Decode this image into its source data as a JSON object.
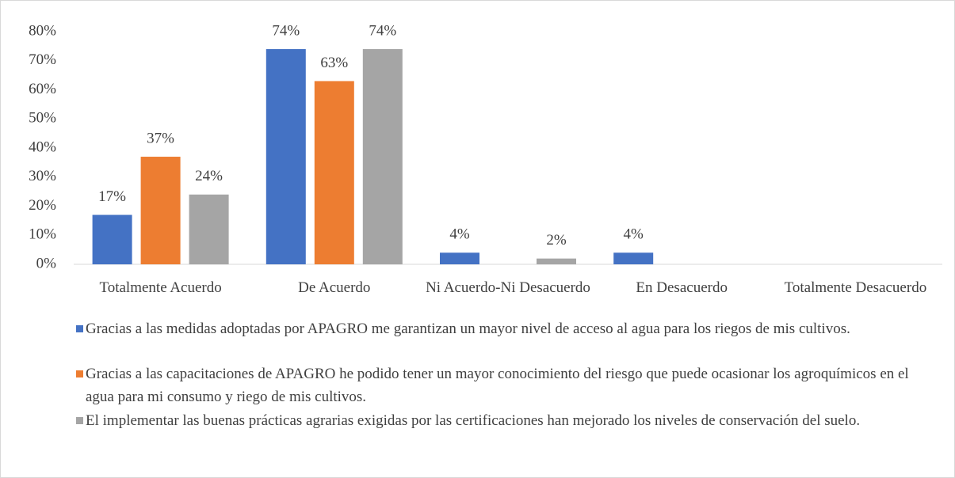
{
  "chart_data": {
    "type": "bar",
    "categories": [
      "Totalmente Acuerdo",
      "De Acuerdo",
      "Ni Acuerdo-Ni Desacuerdo",
      "En Desacuerdo",
      "Totalmente Desacuerdo"
    ],
    "series": [
      {
        "name": "Gracias a las medidas adoptadas por APAGRO me garantizan un mayor nivel de acceso al agua para los riegos de mis cultivos.",
        "color": "#4472c4",
        "values": [
          17,
          74,
          4,
          4,
          null
        ],
        "value_labels": [
          "17%",
          "74%",
          "4%",
          "4%",
          null
        ]
      },
      {
        "name": "Gracias a las capacitaciones de APAGRO he podido tener un mayor conocimiento del riesgo que puede ocasionar los agroquímicos en el agua para mi consumo y riego de mis cultivos.",
        "color": "#ed7d31",
        "values": [
          37,
          63,
          null,
          null,
          null
        ],
        "value_labels": [
          "37%",
          "63%",
          null,
          null,
          null
        ]
      },
      {
        "name": "El implementar las buenas prácticas agrarias exigidas por las certificaciones han mejorado los niveles de conservación del suelo.",
        "color": "#a5a5a5",
        "values": [
          24,
          74,
          2,
          null,
          null
        ],
        "value_labels": [
          "24%",
          "74%",
          "2%",
          null,
          null
        ]
      }
    ],
    "ylim": [
      0,
      80
    ],
    "yticks": [
      {
        "value": 0,
        "label": "0%"
      },
      {
        "value": 10,
        "label": "10%"
      },
      {
        "value": 20,
        "label": "20%"
      },
      {
        "value": 30,
        "label": "30%"
      },
      {
        "value": 40,
        "label": "40%"
      },
      {
        "value": 50,
        "label": "50%"
      },
      {
        "value": 60,
        "label": "60%"
      },
      {
        "value": 70,
        "label": "70%"
      },
      {
        "value": 80,
        "label": "80%"
      }
    ],
    "grid": false,
    "legend": "bottom"
  }
}
